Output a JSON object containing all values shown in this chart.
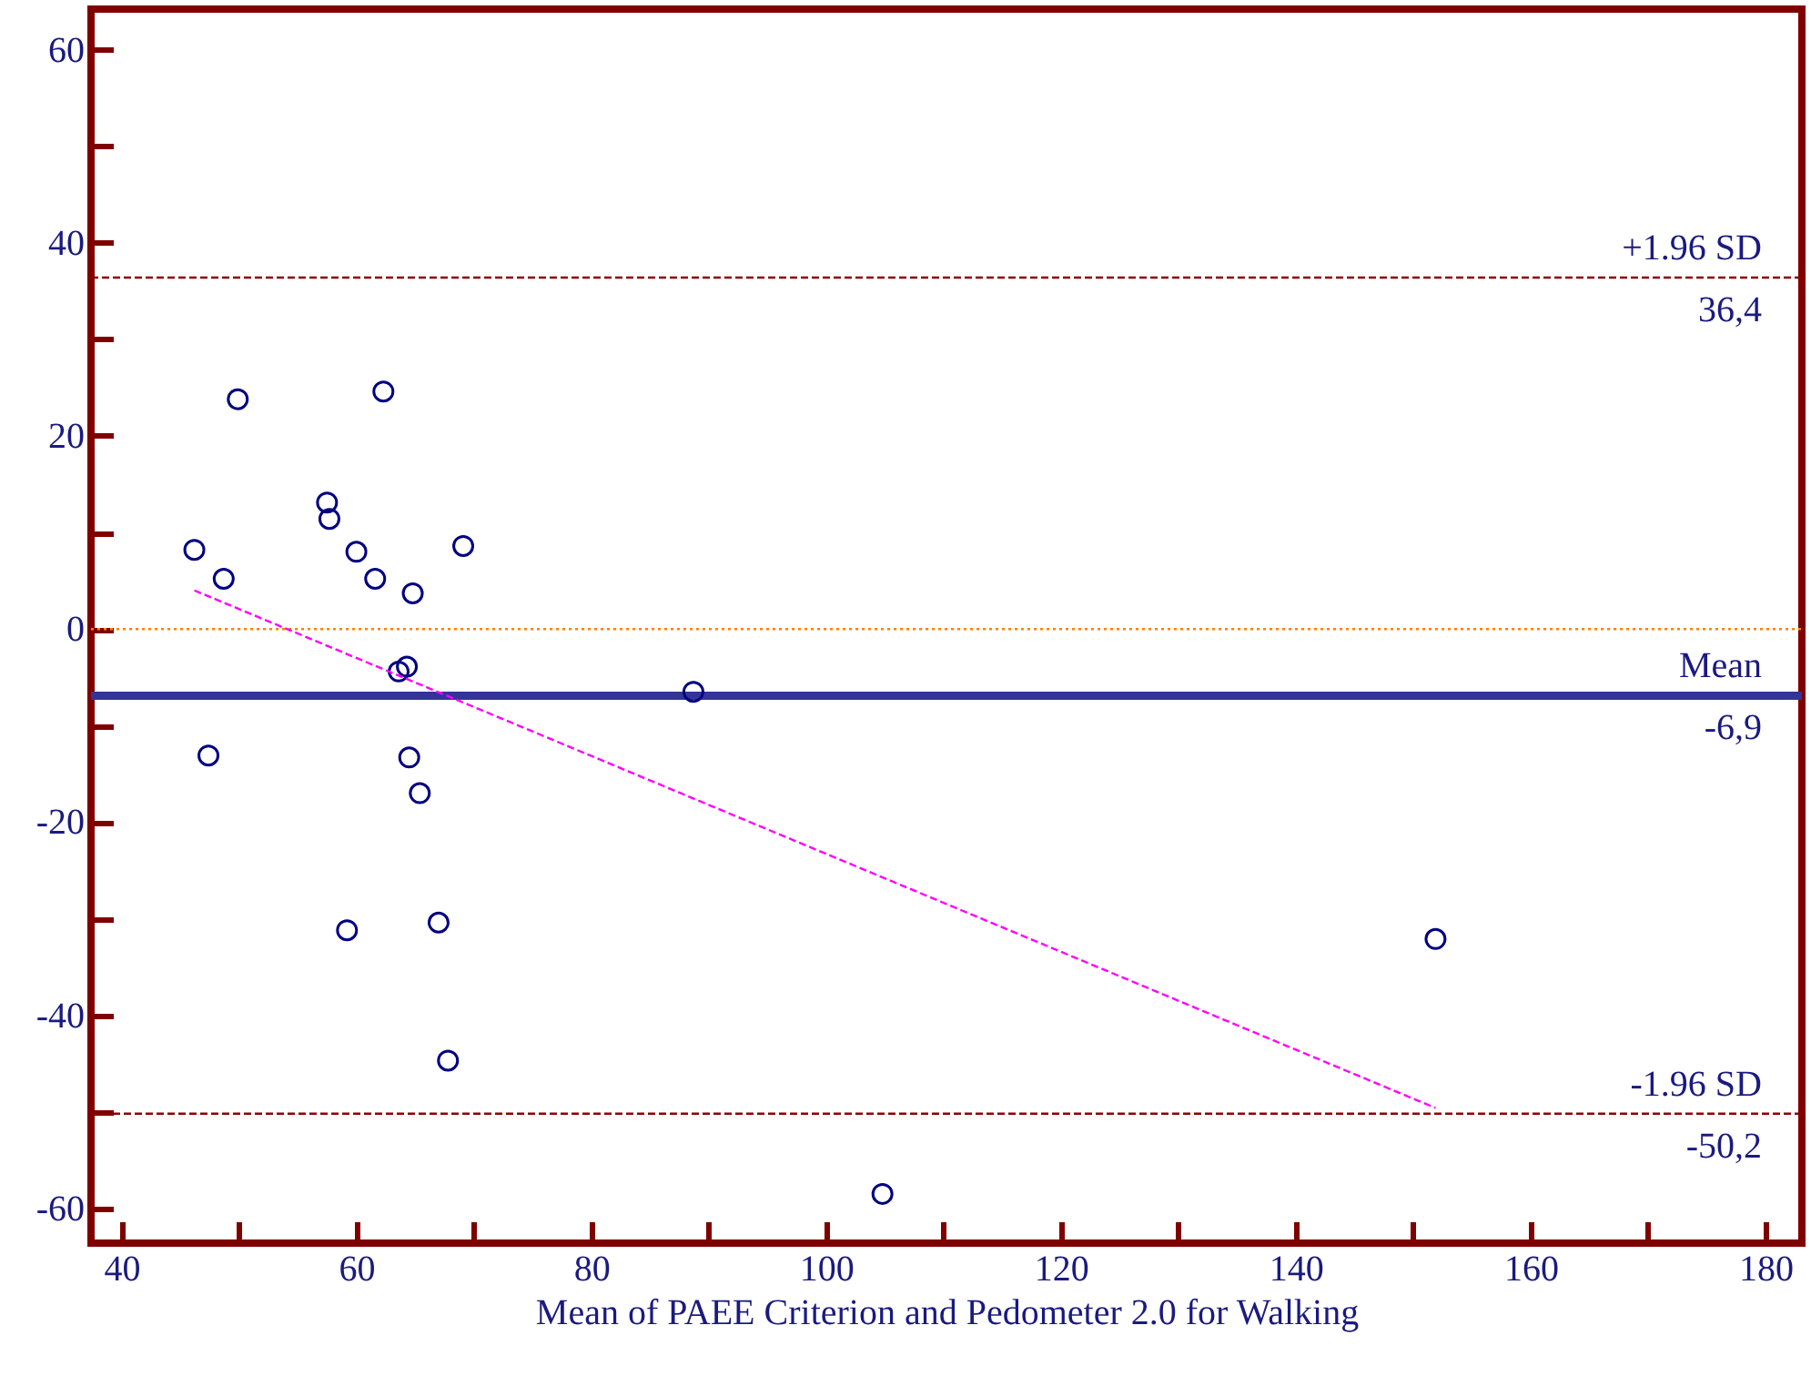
{
  "chart_data": {
    "type": "scatter",
    "xlabel": "Mean of PAEE Criterion and Pedometer 2.0 for Walking",
    "xlim": [
      37.4,
      183.1
    ],
    "ylim": [
      -63.6,
      64.2
    ],
    "xticks": [
      40,
      {
        "value": 50,
        "label": null
      },
      60,
      {
        "value": 70,
        "label": null
      },
      80,
      {
        "value": 90,
        "label": null
      },
      100,
      {
        "value": 110,
        "label": null
      },
      120,
      {
        "value": 130,
        "label": null
      },
      140,
      {
        "value": 150,
        "label": null
      },
      160,
      {
        "value": 170,
        "label": null
      },
      180
    ],
    "yticks": [
      -60,
      {
        "value": -50,
        "label": null
      },
      -40,
      {
        "value": -30,
        "label": null
      },
      -20,
      {
        "value": -10,
        "label": null
      },
      0,
      {
        "value": 10,
        "label": null
      },
      20,
      {
        "value": 30,
        "label": null
      },
      40,
      {
        "value": 50,
        "label": null
      },
      60
    ],
    "grid": false,
    "series": [
      {
        "color": "#000080",
        "marker": "circle",
        "x": [
          46.2,
          48.7,
          47.4,
          49.9,
          57.5,
          57.7,
          60.0,
          61.6,
          62.3,
          64.8,
          69.1,
          63.6,
          64.3,
          64.5,
          65.4,
          59.2,
          67.0,
          67.8,
          88.7,
          104.8,
          151.9
        ],
        "values": [
          8.2,
          5.2,
          -13.1,
          23.8,
          13.1,
          11.4,
          8.0,
          5.2,
          24.6,
          3.7,
          8.6,
          -4.4,
          -3.9,
          -13.3,
          -17.0,
          -31.2,
          -30.4,
          -44.7,
          -6.5,
          -58.5,
          -32.1
        ]
      },
      {
        "type": "line",
        "color": "#ff00ff",
        "line_style": "dashed",
        "marker": "none",
        "x": [
          46.2,
          151.9
        ],
        "values": [
          4.0,
          -49.6
        ]
      }
    ],
    "ref_lines": [
      {
        "axis": "y",
        "value": 0,
        "label": null,
        "color": "#ff8000",
        "line_style": "dotted"
      },
      {
        "axis": "y",
        "value": 36.4,
        "label": "+1.96 SD",
        "color": "#8b0000",
        "line_style": "dashed"
      },
      {
        "axis": "y",
        "value": -6.9,
        "label": "Mean",
        "color": "#333399",
        "line_style": "solid"
      },
      {
        "axis": "y",
        "value": -50.2,
        "label": "-1.96 SD",
        "color": "#8b0000",
        "line_style": "dashed"
      }
    ],
    "annotations": [
      {
        "text": "36,4",
        "y": 36.4
      },
      {
        "text": "-6,9",
        "y": -6.9
      },
      {
        "text": "-50,2",
        "y": -50.2
      }
    ]
  }
}
